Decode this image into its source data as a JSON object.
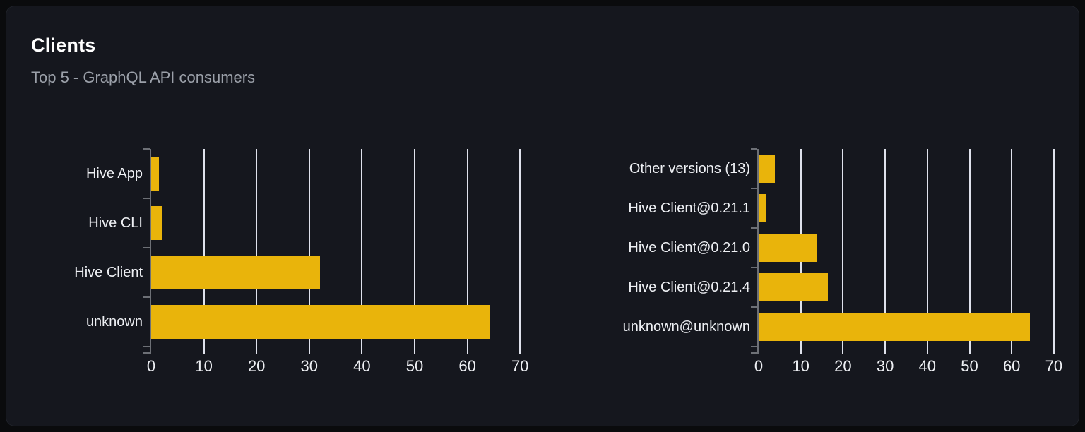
{
  "panel": {
    "title": "Clients",
    "subtitle": "Top 5 - GraphQL API consumers"
  },
  "colors": {
    "bar": "#e9b40b",
    "grid": "#dfe2ec",
    "axis": "#6d7076",
    "text_primary": "#eef0f4",
    "text_secondary": "#9ba0a9",
    "panel_bg": "#15171e",
    "page_bg": "#0a0b0d"
  },
  "chart_data": [
    {
      "type": "bar",
      "orientation": "horizontal",
      "title": "",
      "categories": [
        "Hive App",
        "Hive CLI",
        "Hive Client",
        "unknown"
      ],
      "values": [
        1.5,
        2,
        32,
        64.4
      ],
      "xlim": [
        0,
        70
      ],
      "xticks": [
        0,
        10,
        20,
        30,
        40,
        50,
        60,
        70
      ],
      "grid": true,
      "legend": "none",
      "bar_color": "#e9b40b"
    },
    {
      "type": "bar",
      "orientation": "horizontal",
      "title": "",
      "categories": [
        "Other versions (13)",
        "Hive Client@0.21.1",
        "Hive Client@0.21.0",
        "Hive Client@0.21.4",
        "unknown@unknown"
      ],
      "values": [
        3.9,
        1.7,
        13.7,
        16.4,
        64.4
      ],
      "xlim": [
        0,
        70
      ],
      "xticks": [
        0,
        10,
        20,
        30,
        40,
        50,
        60,
        70
      ],
      "grid": true,
      "legend": "none",
      "bar_color": "#e9b40b"
    }
  ]
}
